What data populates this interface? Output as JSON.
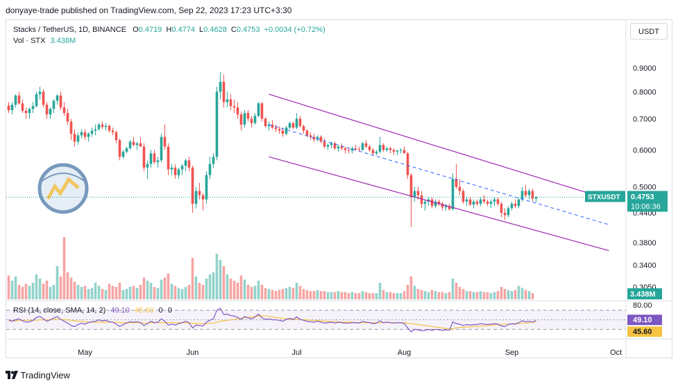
{
  "header": {
    "publisher_text": "donyaye-trade published on TradingView.com, Sep 22, 2023 17:23 UTC+3:30"
  },
  "legend": {
    "symbol": "Stacks / TetherUS, 1D, BINANCE",
    "open_label": "O",
    "open": "0.4719",
    "high_label": "H",
    "high": "0.4774",
    "low_label": "L",
    "low": "0.4628",
    "close_label": "C",
    "close": "0.4753",
    "change": "+0.0034 (+0.72%)",
    "volume_label": "Vol · STX",
    "volume_value": "3.438M"
  },
  "currency_button": "USDT",
  "price_tag": {
    "symbol": "STXUSDT",
    "price": "0.4753",
    "countdown": "10:06:36"
  },
  "volume_tag": "3.438M",
  "rsi": {
    "legend": "RSI (14, close, SMA, 14, 2)",
    "rsi_value": "49.10",
    "sma_value": "45.60",
    "extra1": "0",
    "extra2": "0",
    "top_level": "80.00",
    "tag_rsi": "49.10",
    "tag_sma": "45.60"
  },
  "footer": {
    "brand": "TradingView"
  },
  "colors": {
    "up": "#26a69a",
    "down": "#ef5350",
    "vol_up": "#93d2cb",
    "vol_down": "#f5a5a4",
    "channel": "#9c27b0",
    "midline": "#2962ff",
    "rsi": "#7e57c2",
    "rsi_sma": "#f6c342",
    "price_tag": "#26a69a"
  },
  "chart_data": {
    "type": "candlestick",
    "y_scale": "log",
    "ylim": [
      0.285,
      0.96
    ],
    "price_axis_labels": [
      "0.9000",
      "0.8000",
      "0.7000",
      "0.6000",
      "0.5000",
      "0.4400",
      "0.3800",
      "0.3400",
      "0.3050"
    ],
    "time_axis_labels": [
      {
        "label": "May",
        "date": "2023-05-01"
      },
      {
        "label": "Jun",
        "date": "2023-06-01"
      },
      {
        "label": "Jul",
        "date": "2023-07-01"
      },
      {
        "label": "Aug",
        "date": "2023-08-01"
      },
      {
        "label": "Sep",
        "date": "2023-09-01"
      },
      {
        "label": "Oct",
        "date": "2023-10-01"
      }
    ],
    "first_date": "2023-04-09",
    "ohlc": [
      [
        0.747,
        0.76,
        0.72,
        0.73
      ],
      [
        0.73,
        0.76,
        0.715,
        0.75
      ],
      [
        0.75,
        0.79,
        0.74,
        0.785
      ],
      [
        0.785,
        0.8,
        0.75,
        0.755
      ],
      [
        0.755,
        0.77,
        0.72,
        0.728
      ],
      [
        0.728,
        0.74,
        0.7,
        0.72
      ],
      [
        0.72,
        0.74,
        0.7,
        0.735
      ],
      [
        0.735,
        0.76,
        0.72,
        0.745
      ],
      [
        0.745,
        0.8,
        0.74,
        0.79
      ],
      [
        0.79,
        0.82,
        0.77,
        0.8
      ],
      [
        0.8,
        0.81,
        0.74,
        0.75
      ],
      [
        0.75,
        0.76,
        0.7,
        0.715
      ],
      [
        0.715,
        0.74,
        0.7,
        0.735
      ],
      [
        0.735,
        0.77,
        0.72,
        0.765
      ],
      [
        0.765,
        0.79,
        0.75,
        0.785
      ],
      [
        0.785,
        0.8,
        0.73,
        0.74
      ],
      [
        0.74,
        0.76,
        0.71,
        0.72
      ],
      [
        0.72,
        0.735,
        0.68,
        0.69
      ],
      [
        0.69,
        0.7,
        0.63,
        0.65
      ],
      [
        0.65,
        0.665,
        0.61,
        0.625
      ],
      [
        0.625,
        0.655,
        0.615,
        0.645
      ],
      [
        0.645,
        0.665,
        0.635,
        0.655
      ],
      [
        0.655,
        0.665,
        0.63,
        0.64
      ],
      [
        0.64,
        0.655,
        0.625,
        0.65
      ],
      [
        0.65,
        0.67,
        0.64,
        0.66
      ],
      [
        0.66,
        0.68,
        0.645,
        0.665
      ],
      [
        0.665,
        0.685,
        0.66,
        0.68
      ],
      [
        0.68,
        0.69,
        0.665,
        0.672
      ],
      [
        0.672,
        0.685,
        0.66,
        0.676
      ],
      [
        0.676,
        0.68,
        0.655,
        0.66
      ],
      [
        0.66,
        0.67,
        0.645,
        0.655
      ],
      [
        0.655,
        0.66,
        0.62,
        0.63
      ],
      [
        0.63,
        0.635,
        0.57,
        0.58
      ],
      [
        0.58,
        0.6,
        0.575,
        0.595
      ],
      [
        0.595,
        0.61,
        0.59,
        0.605
      ],
      [
        0.605,
        0.63,
        0.6,
        0.625
      ],
      [
        0.625,
        0.64,
        0.61,
        0.615
      ],
      [
        0.615,
        0.625,
        0.6,
        0.62
      ],
      [
        0.62,
        0.64,
        0.61,
        0.61
      ],
      [
        0.61,
        0.62,
        0.54,
        0.55
      ],
      [
        0.55,
        0.57,
        0.52,
        0.56
      ],
      [
        0.56,
        0.6,
        0.55,
        0.59
      ],
      [
        0.59,
        0.6,
        0.56,
        0.565
      ],
      [
        0.565,
        0.58,
        0.55,
        0.57
      ],
      [
        0.57,
        0.65,
        0.565,
        0.64
      ],
      [
        0.64,
        0.68,
        0.6,
        0.61
      ],
      [
        0.61,
        0.62,
        0.53,
        0.545
      ],
      [
        0.545,
        0.56,
        0.53,
        0.55
      ],
      [
        0.55,
        0.56,
        0.52,
        0.53
      ],
      [
        0.53,
        0.55,
        0.52,
        0.545
      ],
      [
        0.545,
        0.56,
        0.53,
        0.555
      ],
      [
        0.555,
        0.575,
        0.54,
        0.57
      ],
      [
        0.57,
        0.58,
        0.54,
        0.55
      ],
      [
        0.55,
        0.555,
        0.44,
        0.46
      ],
      [
        0.46,
        0.5,
        0.45,
        0.49
      ],
      [
        0.49,
        0.51,
        0.47,
        0.48
      ],
      [
        0.48,
        0.485,
        0.445,
        0.47
      ],
      [
        0.47,
        0.54,
        0.46,
        0.53
      ],
      [
        0.53,
        0.58,
        0.52,
        0.56
      ],
      [
        0.56,
        0.59,
        0.55,
        0.58
      ],
      [
        0.58,
        0.82,
        0.57,
        0.8
      ],
      [
        0.8,
        0.88,
        0.77,
        0.84
      ],
      [
        0.84,
        0.87,
        0.74,
        0.76
      ],
      [
        0.76,
        0.8,
        0.74,
        0.77
      ],
      [
        0.77,
        0.79,
        0.73,
        0.745
      ],
      [
        0.745,
        0.77,
        0.72,
        0.74
      ],
      [
        0.74,
        0.76,
        0.7,
        0.715
      ],
      [
        0.715,
        0.725,
        0.66,
        0.68
      ],
      [
        0.68,
        0.73,
        0.67,
        0.72
      ],
      [
        0.72,
        0.73,
        0.69,
        0.7
      ],
      [
        0.7,
        0.71,
        0.67,
        0.685
      ],
      [
        0.685,
        0.72,
        0.68,
        0.71
      ],
      [
        0.71,
        0.76,
        0.705,
        0.755
      ],
      [
        0.755,
        0.76,
        0.69,
        0.7
      ],
      [
        0.7,
        0.705,
        0.67,
        0.675
      ],
      [
        0.675,
        0.69,
        0.66,
        0.68
      ],
      [
        0.68,
        0.695,
        0.665,
        0.67
      ],
      [
        0.67,
        0.68,
        0.655,
        0.665
      ],
      [
        0.665,
        0.675,
        0.65,
        0.66
      ],
      [
        0.66,
        0.67,
        0.64,
        0.65
      ],
      [
        0.65,
        0.675,
        0.645,
        0.67
      ],
      [
        0.67,
        0.69,
        0.665,
        0.685
      ],
      [
        0.685,
        0.69,
        0.665,
        0.67
      ],
      [
        0.67,
        0.72,
        0.665,
        0.7
      ],
      [
        0.7,
        0.71,
        0.67,
        0.675
      ],
      [
        0.675,
        0.68,
        0.65,
        0.66
      ],
      [
        0.66,
        0.665,
        0.64,
        0.645
      ],
      [
        0.645,
        0.655,
        0.63,
        0.64
      ],
      [
        0.64,
        0.65,
        0.625,
        0.632
      ],
      [
        0.632,
        0.645,
        0.625,
        0.64
      ],
      [
        0.64,
        0.645,
        0.62,
        0.625
      ],
      [
        0.625,
        0.635,
        0.605,
        0.61
      ],
      [
        0.61,
        0.62,
        0.6,
        0.615
      ],
      [
        0.615,
        0.625,
        0.605,
        0.62
      ],
      [
        0.62,
        0.625,
        0.6,
        0.605
      ],
      [
        0.605,
        0.615,
        0.595,
        0.61
      ],
      [
        0.61,
        0.62,
        0.6,
        0.605
      ],
      [
        0.605,
        0.61,
        0.59,
        0.6
      ],
      [
        0.6,
        0.605,
        0.59,
        0.598
      ],
      [
        0.598,
        0.61,
        0.59,
        0.605
      ],
      [
        0.605,
        0.615,
        0.598,
        0.602
      ],
      [
        0.602,
        0.61,
        0.595,
        0.6
      ],
      [
        0.6,
        0.625,
        0.598,
        0.62
      ],
      [
        0.62,
        0.63,
        0.605,
        0.61
      ],
      [
        0.61,
        0.615,
        0.595,
        0.6
      ],
      [
        0.6,
        0.605,
        0.585,
        0.59
      ],
      [
        0.59,
        0.6,
        0.585,
        0.595
      ],
      [
        0.595,
        0.64,
        0.59,
        0.615
      ],
      [
        0.615,
        0.62,
        0.595,
        0.6
      ],
      [
        0.6,
        0.61,
        0.595,
        0.605
      ],
      [
        0.605,
        0.61,
        0.59,
        0.6
      ],
      [
        0.6,
        0.605,
        0.585,
        0.595
      ],
      [
        0.595,
        0.6,
        0.585,
        0.598
      ],
      [
        0.598,
        0.605,
        0.59,
        0.6
      ],
      [
        0.6,
        0.61,
        0.59,
        0.59
      ],
      [
        0.59,
        0.595,
        0.52,
        0.53
      ],
      [
        0.53,
        0.535,
        0.41,
        0.475
      ],
      [
        0.475,
        0.5,
        0.465,
        0.49
      ],
      [
        0.49,
        0.5,
        0.47,
        0.48
      ],
      [
        0.48,
        0.49,
        0.45,
        0.46
      ],
      [
        0.46,
        0.47,
        0.445,
        0.465
      ],
      [
        0.465,
        0.475,
        0.455,
        0.47
      ],
      [
        0.47,
        0.475,
        0.45,
        0.455
      ],
      [
        0.455,
        0.47,
        0.45,
        0.465
      ],
      [
        0.465,
        0.47,
        0.455,
        0.46
      ],
      [
        0.46,
        0.465,
        0.445,
        0.452
      ],
      [
        0.452,
        0.46,
        0.445,
        0.455
      ],
      [
        0.455,
        0.46,
        0.445,
        0.448
      ],
      [
        0.448,
        0.535,
        0.445,
        0.52
      ],
      [
        0.52,
        0.56,
        0.495,
        0.5
      ],
      [
        0.5,
        0.52,
        0.48,
        0.49
      ],
      [
        0.49,
        0.495,
        0.46,
        0.465
      ],
      [
        0.465,
        0.475,
        0.455,
        0.47
      ],
      [
        0.47,
        0.475,
        0.455,
        0.458
      ],
      [
        0.458,
        0.47,
        0.45,
        0.465
      ],
      [
        0.465,
        0.47,
        0.455,
        0.46
      ],
      [
        0.46,
        0.475,
        0.455,
        0.47
      ],
      [
        0.47,
        0.48,
        0.46,
        0.465
      ],
      [
        0.465,
        0.47,
        0.455,
        0.46
      ],
      [
        0.46,
        0.47,
        0.45,
        0.465
      ],
      [
        0.465,
        0.475,
        0.455,
        0.47
      ],
      [
        0.47,
        0.475,
        0.455,
        0.46
      ],
      [
        0.46,
        0.465,
        0.43,
        0.44
      ],
      [
        0.44,
        0.45,
        0.425,
        0.435
      ],
      [
        0.435,
        0.455,
        0.43,
        0.45
      ],
      [
        0.45,
        0.465,
        0.445,
        0.46
      ],
      [
        0.46,
        0.47,
        0.45,
        0.455
      ],
      [
        0.455,
        0.475,
        0.45,
        0.47
      ],
      [
        0.47,
        0.5,
        0.465,
        0.49
      ],
      [
        0.49,
        0.505,
        0.475,
        0.48
      ],
      [
        0.48,
        0.495,
        0.47,
        0.49
      ],
      [
        0.49,
        0.495,
        0.465,
        0.472
      ],
      [
        0.4719,
        0.4774,
        0.4628,
        0.4753
      ]
    ],
    "volume": [
      2.3,
      1.8,
      2.2,
      1.4,
      1.2,
      1.5,
      1.3,
      1.6,
      2.4,
      2.0,
      1.5,
      1.8,
      1.2,
      1.4,
      3.2,
      2.2,
      6.0,
      2.6,
      2.1,
      1.7,
      1.4,
      1.2,
      1.3,
      1.0,
      1.1,
      1.6,
      1.3,
      1.0,
      0.9,
      1.5,
      1.3,
      1.2,
      1.6,
      0.9,
      1.0,
      1.2,
      1.3,
      1.1,
      1.4,
      2.1,
      1.8,
      1.6,
      1.2,
      1.1,
      1.9,
      2.1,
      2.5,
      1.5,
      1.3,
      1.1,
      1.0,
      1.2,
      1.4,
      4.0,
      2.2,
      1.6,
      1.4,
      2.0,
      2.4,
      2.6,
      4.4,
      3.8,
      3.2,
      2.4,
      2.0,
      1.8,
      1.6,
      2.3,
      1.9,
      1.4,
      1.2,
      1.3,
      1.8,
      1.4,
      1.1,
      1.0,
      0.9,
      0.8,
      0.9,
      1.0,
      1.1,
      1.2,
      1.1,
      1.6,
      1.3,
      1.0,
      0.9,
      0.8,
      0.8,
      0.9,
      0.8,
      0.8,
      0.7,
      0.7,
      0.7,
      0.8,
      0.7,
      0.7,
      0.6,
      0.7,
      0.6,
      0.6,
      0.8,
      0.7,
      0.6,
      0.6,
      0.6,
      1.6,
      0.9,
      0.7,
      0.7,
      0.6,
      0.6,
      0.6,
      0.8,
      1.4,
      2.2,
      1.3,
      1.0,
      0.9,
      0.8,
      0.7,
      0.9,
      0.8,
      0.7,
      0.7,
      0.6,
      0.7,
      2.0,
      1.6,
      1.2,
      1.0,
      0.8,
      0.8,
      0.7,
      0.7,
      0.8,
      0.7,
      0.7,
      0.6,
      0.7,
      0.8,
      1.2,
      1.0,
      0.9,
      0.8,
      0.9,
      1.3,
      1.1,
      0.9,
      0.8,
      0.6
    ],
    "vol_max": 6.0,
    "channel": {
      "upper": [
        {
          "date": "2023-06-23",
          "price": 0.79
        },
        {
          "date": "2023-09-29",
          "price": 0.47
        }
      ],
      "lower": [
        {
          "date": "2023-06-23",
          "price": 0.58
        },
        {
          "date": "2023-09-29",
          "price": 0.365
        }
      ],
      "mid": [
        {
          "date": "2023-06-23",
          "price": 0.68
        },
        {
          "date": "2023-09-29",
          "price": 0.415
        }
      ]
    },
    "current_price": 0.4753,
    "rsi_values": [
      50,
      47,
      50,
      52,
      48,
      45,
      46,
      49,
      55,
      57,
      52,
      47,
      50,
      54,
      57,
      51,
      47,
      43,
      38,
      36,
      40,
      43,
      41,
      44,
      46,
      47,
      50,
      48,
      49,
      46,
      45,
      41,
      36,
      40,
      43,
      46,
      45,
      46,
      44,
      38,
      42,
      47,
      44,
      45,
      52,
      47,
      39,
      41,
      39,
      42,
      44,
      47,
      44,
      33,
      39,
      38,
      37,
      45,
      49,
      52,
      70,
      74,
      61,
      62,
      59,
      58,
      55,
      51,
      57,
      54,
      52,
      56,
      62,
      54,
      51,
      52,
      50,
      50,
      49,
      47,
      51,
      53,
      51,
      56,
      51,
      49,
      47,
      46,
      45,
      47,
      45,
      43,
      44,
      45,
      43,
      45,
      44,
      43,
      43,
      44,
      44,
      43,
      47,
      45,
      44,
      42,
      43,
      48,
      44,
      45,
      44,
      43,
      44,
      44,
      42,
      33,
      25,
      30,
      29,
      27,
      28,
      30,
      28,
      30,
      29,
      28,
      29,
      28,
      46,
      42,
      41,
      38,
      40,
      39,
      40,
      40,
      42,
      41,
      40,
      41,
      42,
      41,
      37,
      36,
      40,
      42,
      41,
      44,
      48,
      46,
      47,
      45,
      49.1
    ],
    "rsi_sma": [
      48,
      48,
      48,
      49,
      49,
      49,
      49,
      49,
      49,
      50,
      50,
      50,
      50,
      51,
      51,
      51,
      50,
      50,
      49,
      48,
      47,
      47,
      46,
      45,
      45,
      45,
      45,
      45,
      45,
      45,
      45,
      45,
      44,
      44,
      44,
      44,
      44,
      44,
      44,
      43,
      43,
      44,
      44,
      44,
      44,
      44,
      44,
      44,
      44,
      44,
      44,
      44,
      43,
      43,
      42,
      42,
      42,
      42,
      43,
      43,
      45,
      47,
      48,
      49,
      50,
      51,
      52,
      53,
      54,
      55,
      56,
      57,
      58,
      58,
      58,
      57,
      56,
      55,
      54,
      53,
      52,
      51,
      51,
      51,
      51,
      50,
      50,
      49,
      49,
      48,
      48,
      47,
      47,
      46,
      46,
      46,
      45,
      45,
      45,
      45,
      44,
      44,
      44,
      44,
      44,
      44,
      44,
      44,
      44,
      44,
      44,
      44,
      44,
      44,
      44,
      43,
      42,
      41,
      40,
      39,
      38,
      37,
      36,
      35,
      34,
      33,
      32,
      31,
      32,
      33,
      34,
      34,
      35,
      35,
      36,
      36,
      37,
      37,
      38,
      39,
      39,
      40,
      40,
      41,
      41,
      41,
      42,
      42,
      43,
      43,
      44,
      45,
      45.6
    ],
    "rsi_levels": [
      80,
      70,
      50,
      30,
      20
    ]
  }
}
